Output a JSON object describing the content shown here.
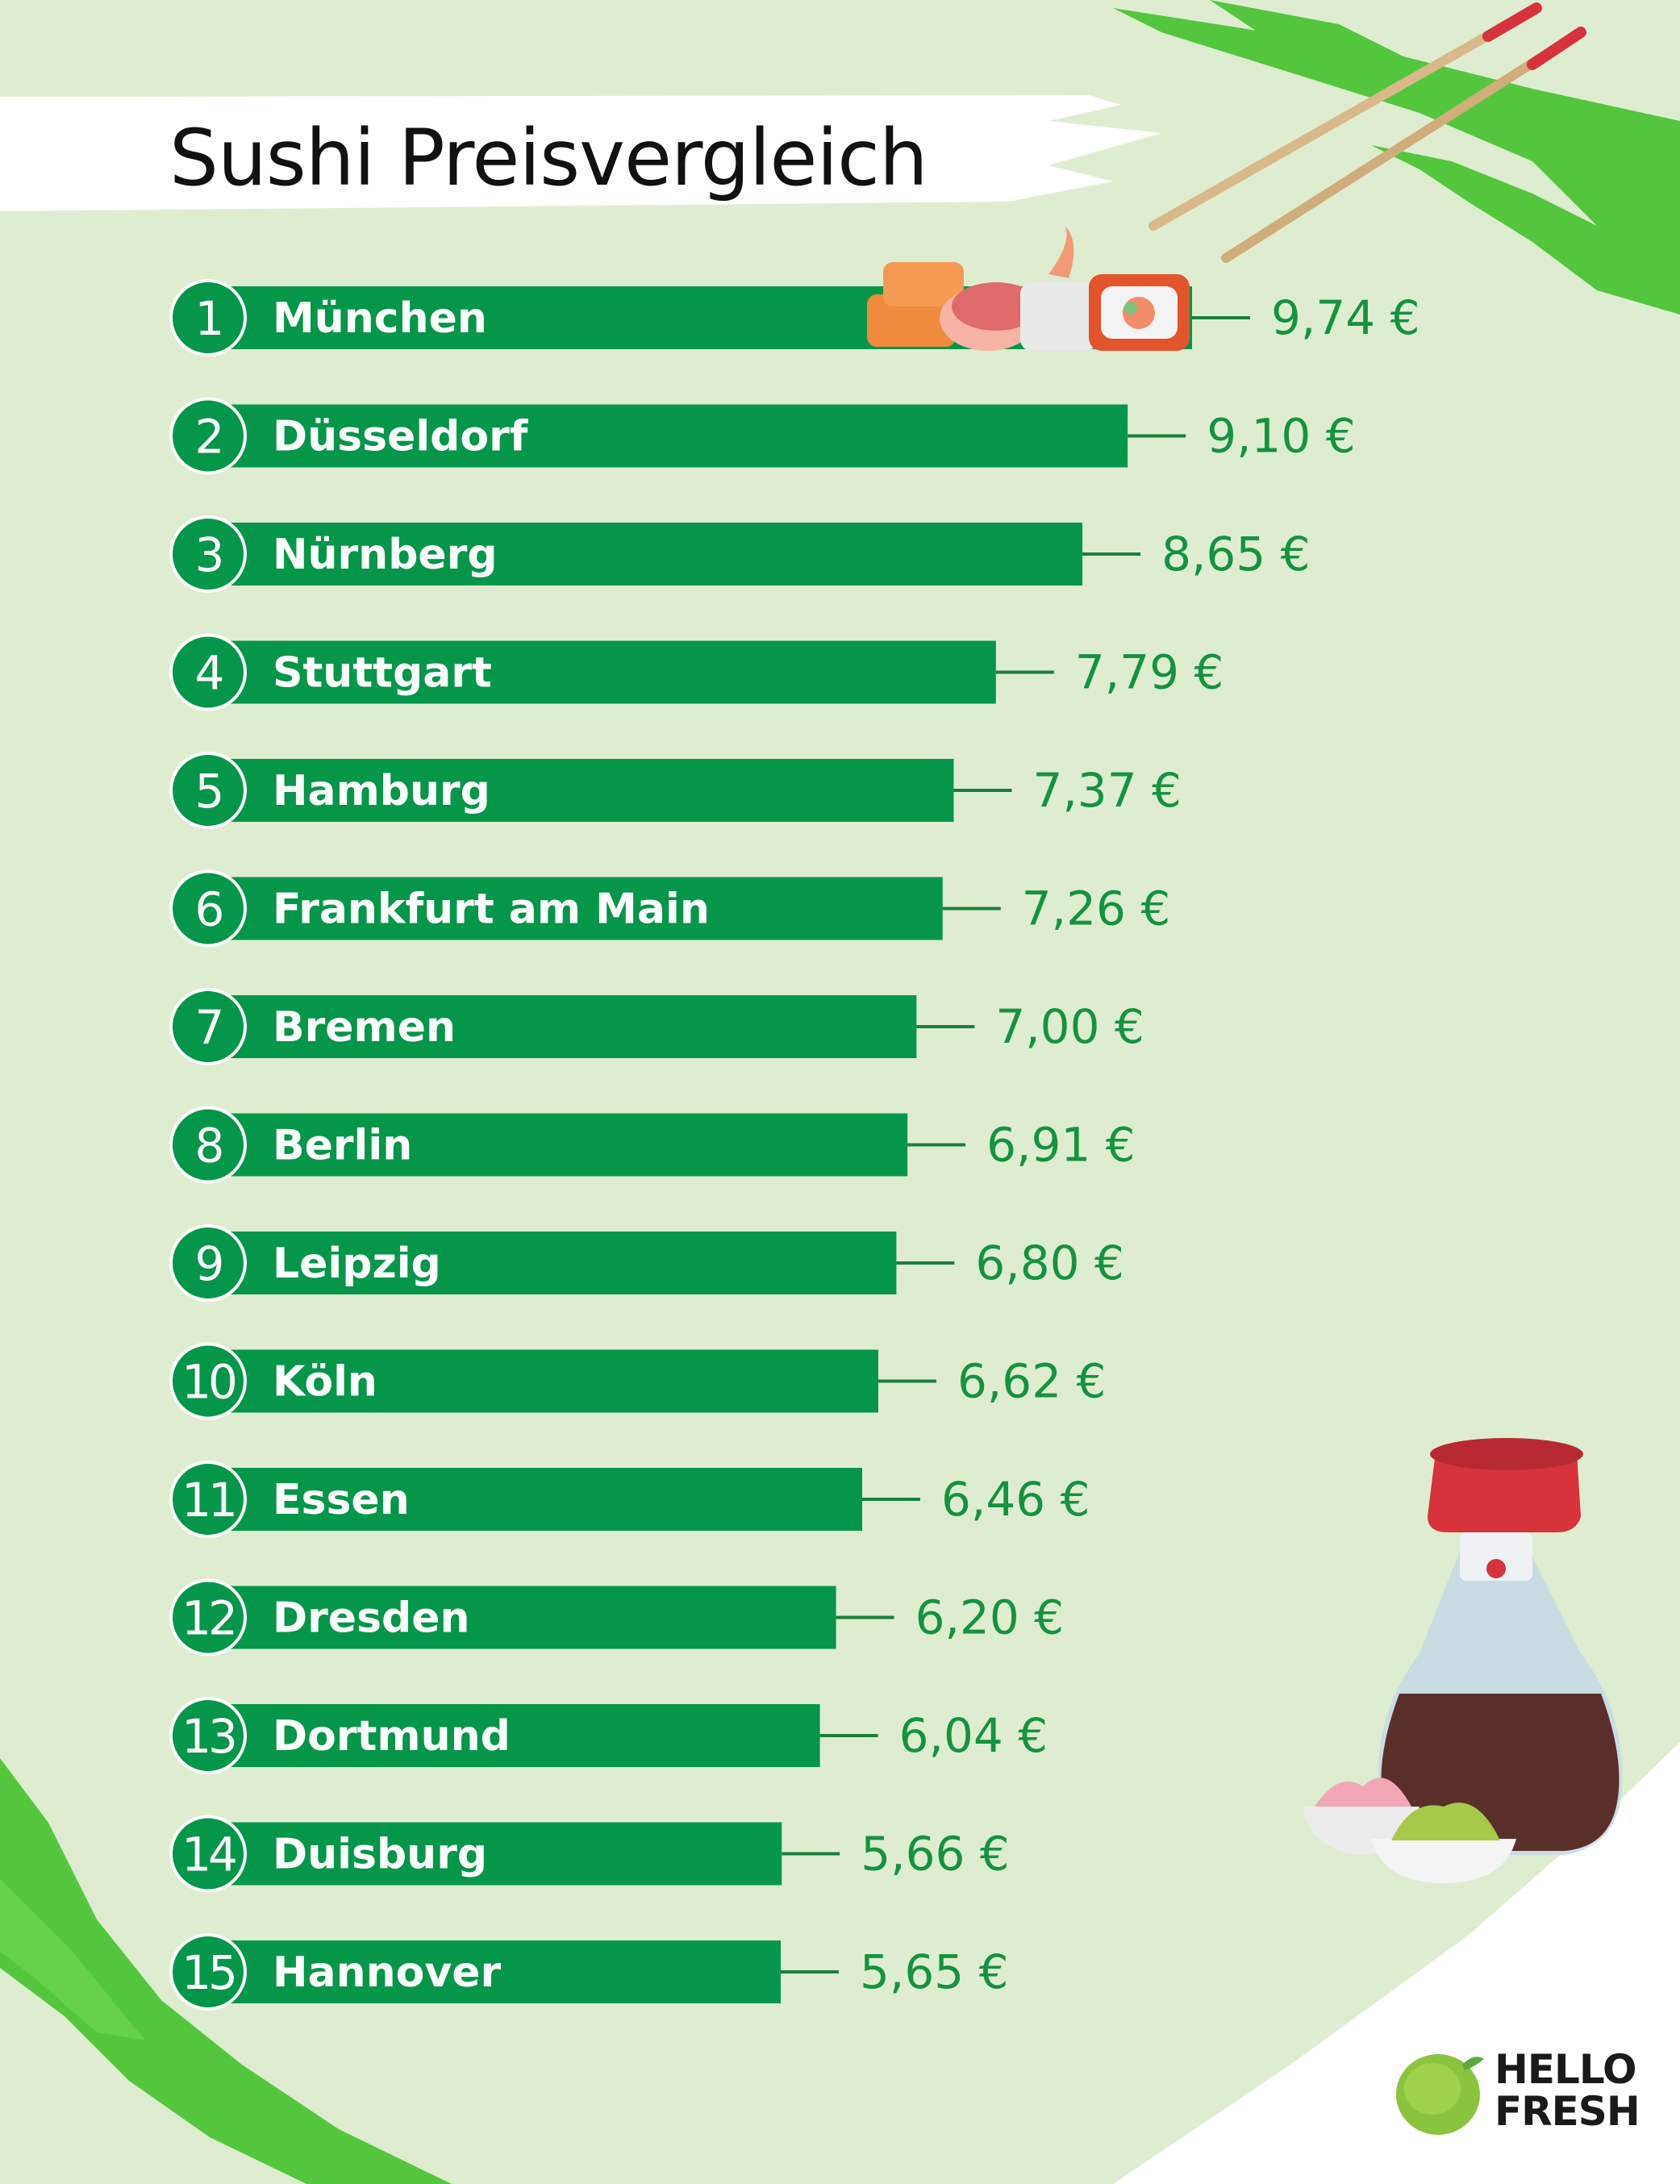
{
  "title": "Sushi Preisvergleich",
  "colors": {
    "background": "#deedd0",
    "bar": "#06964a",
    "accent_green": "#53c63d",
    "value_text": "#15923f",
    "title_text": "#111111"
  },
  "icons": [
    "chopsticks-icon",
    "sushi-platter-icon",
    "soy-sauce-bottle-icon",
    "ginger-bowl-icon",
    "wasabi-bowl-icon",
    "hellofresh-lime-icon"
  ],
  "chart_data": {
    "type": "bar",
    "orientation": "horizontal",
    "title": "Sushi Preisvergleich",
    "value_suffix": " €",
    "categories": [
      "München",
      "Düsseldorf",
      "Nürnberg",
      "Stuttgart",
      "Hamburg",
      "Frankfurt am Main",
      "Bremen",
      "Berlin",
      "Leipzig",
      "Köln",
      "Essen",
      "Dresden",
      "Dortmund",
      "Duisburg",
      "Hannover"
    ],
    "ranks": [
      "1",
      "2",
      "3",
      "4",
      "5",
      "6",
      "7",
      "8",
      "9",
      "10",
      "11",
      "12",
      "13",
      "14",
      "15"
    ],
    "values": [
      9.74,
      9.1,
      8.65,
      7.79,
      7.37,
      7.26,
      7.0,
      6.91,
      6.8,
      6.62,
      6.46,
      6.2,
      6.04,
      5.66,
      5.65
    ],
    "value_labels": [
      "9,74 €",
      "9,10 €",
      "8,65 €",
      "7,79 €",
      "7,37 €",
      "7,26 €",
      "7,00 €",
      "6,91 €",
      "6,80 €",
      "6,62 €",
      "6,46 €",
      "6,20 €",
      "6,04 €",
      "5,66 €",
      "5,65 €"
    ],
    "xlim": [
      0,
      9.74
    ],
    "grid": false,
    "legend": "none"
  },
  "logo": {
    "line1": "HELLO",
    "line2": "FRESH"
  }
}
